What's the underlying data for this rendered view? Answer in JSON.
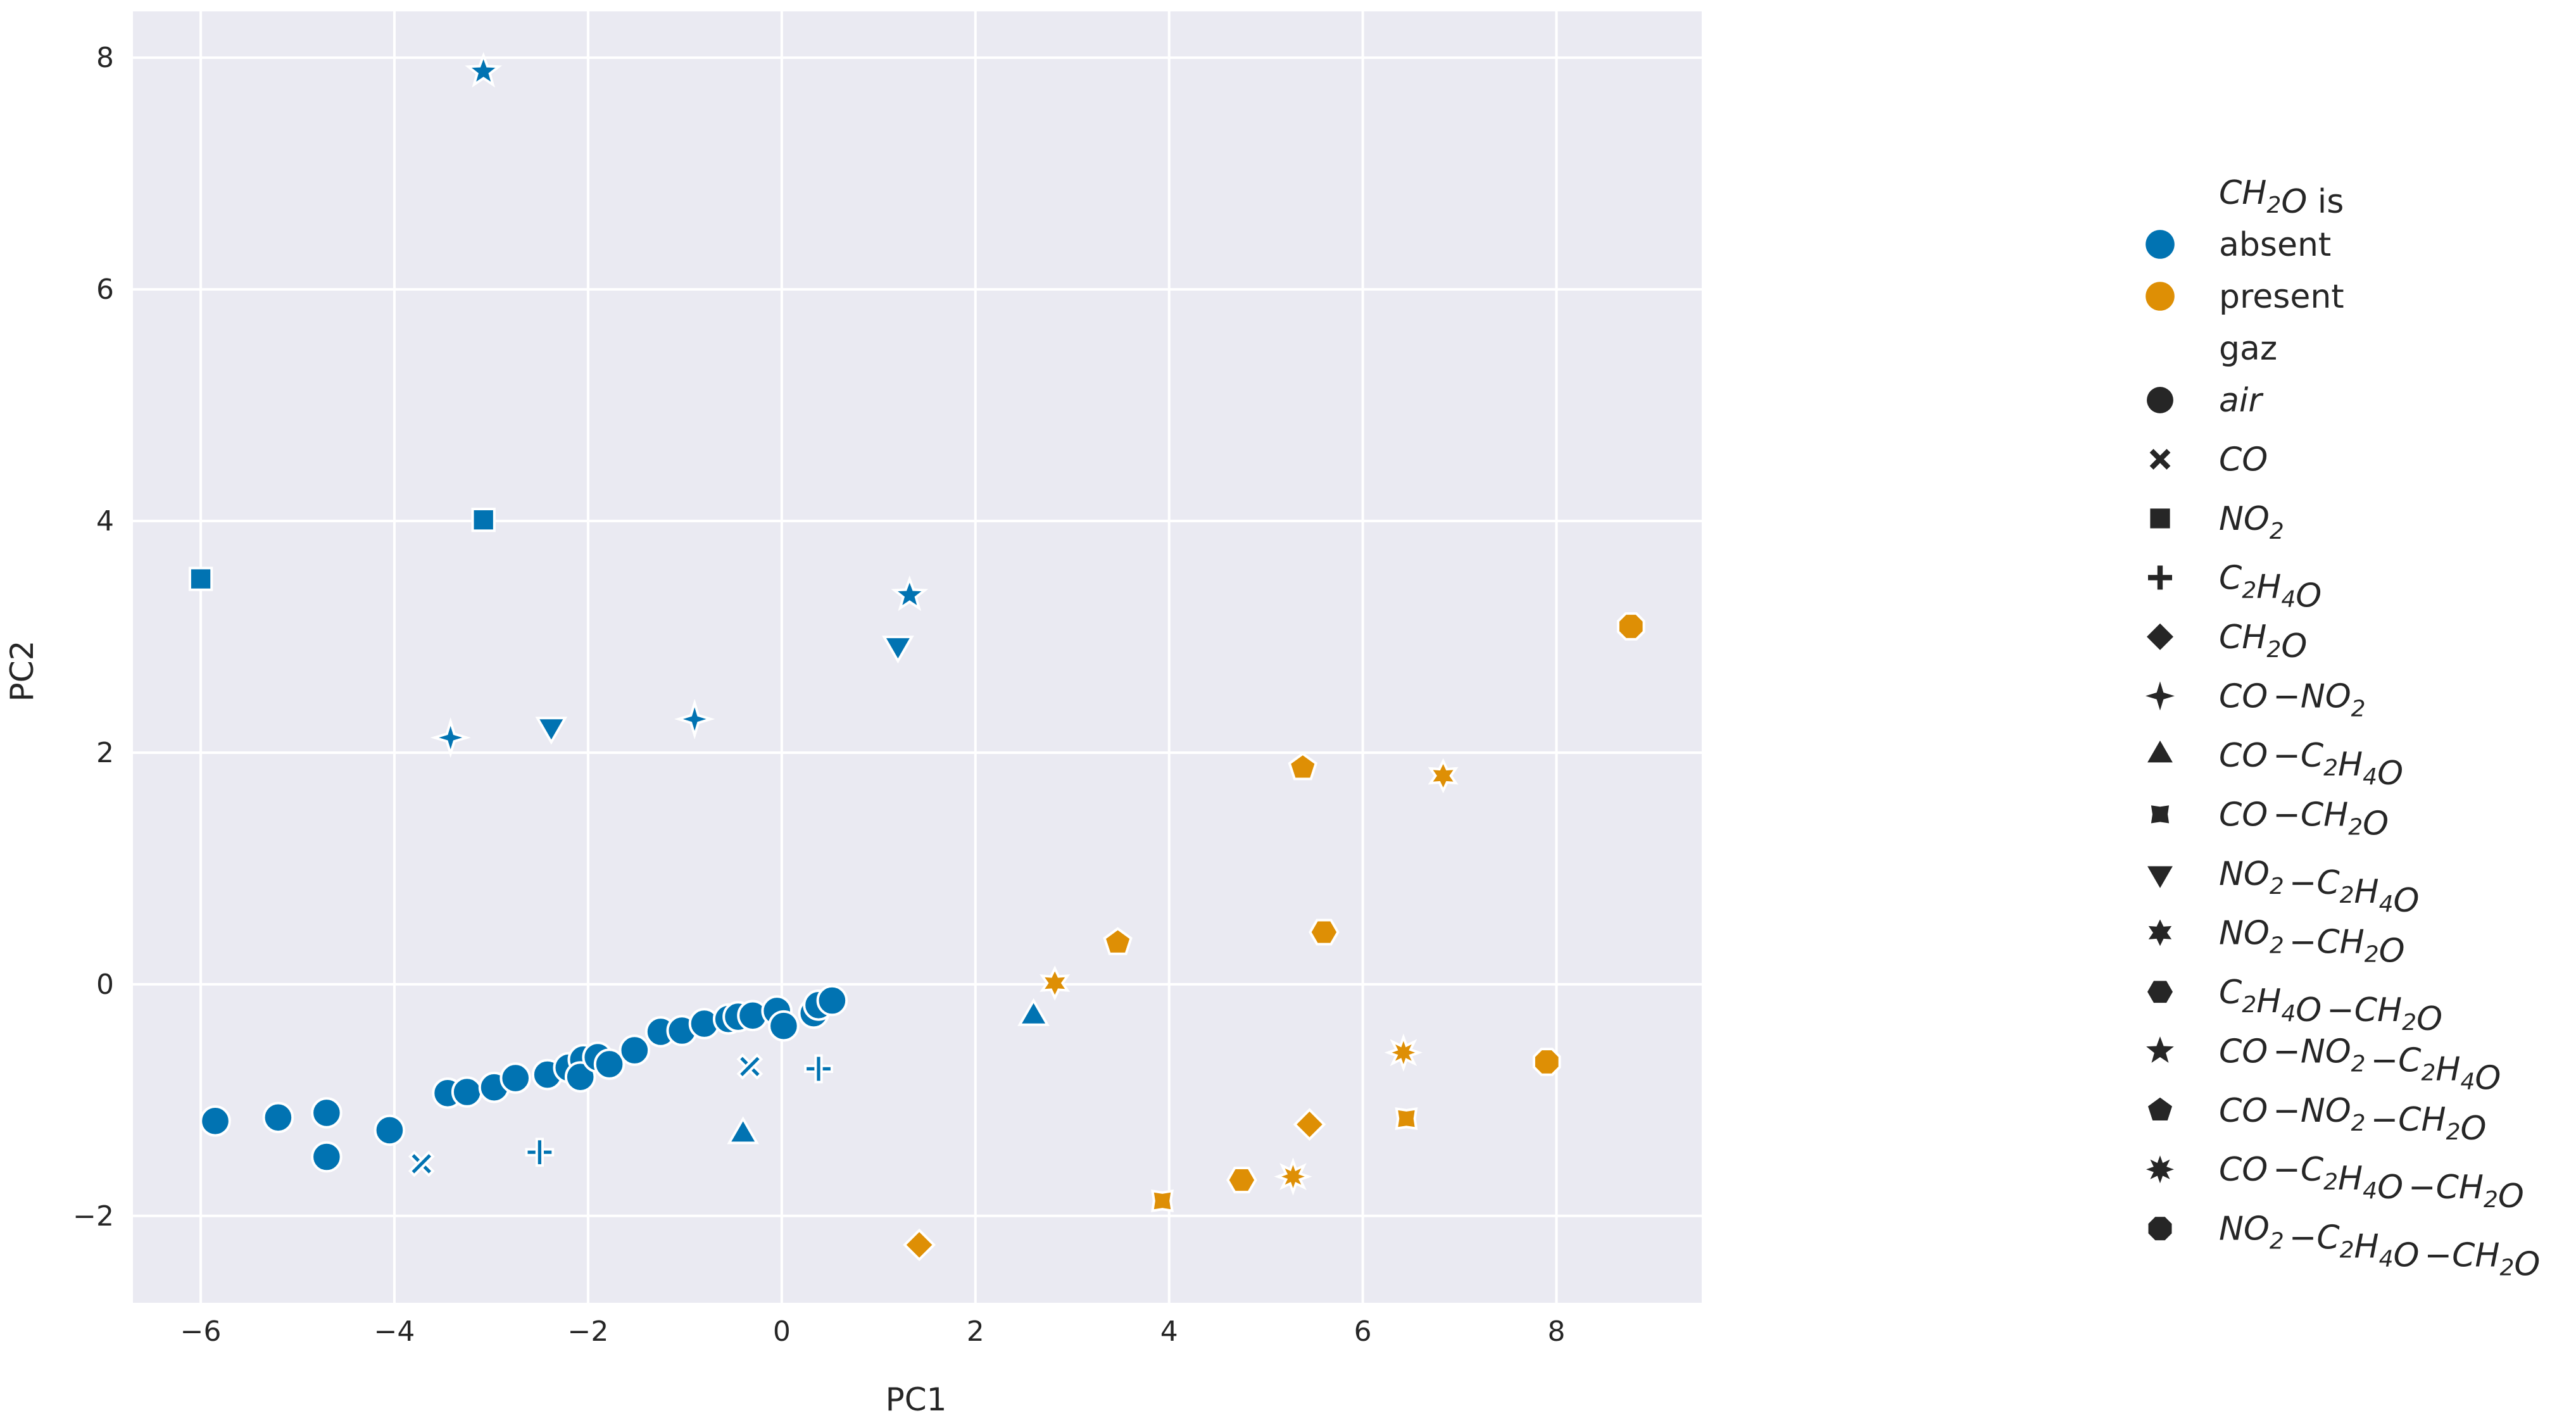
{
  "chart_data": {
    "type": "scatter",
    "xlabel": "PC1",
    "ylabel": "PC2",
    "xlim": [
      -6.7,
      9.5
    ],
    "ylim": [
      -2.75,
      8.4
    ],
    "xticks": [
      -6,
      -4,
      -2,
      0,
      2,
      4,
      6,
      8
    ],
    "yticks": [
      -2,
      0,
      2,
      4,
      6,
      8
    ],
    "xtick_labels": [
      "−6",
      "−4",
      "−2",
      "0",
      "2",
      "4",
      "6",
      "8"
    ],
    "ytick_labels": [
      "−2",
      "0",
      "2",
      "4",
      "6",
      "8"
    ],
    "grid": true,
    "background": "#eaeaf2",
    "legend_position": "right",
    "hue_title": "CH2O is",
    "hue_levels": [
      {
        "label": "absent",
        "color": "#0173b2"
      },
      {
        "label": "present",
        "color": "#de8f05"
      }
    ],
    "style_title": "gaz",
    "style_levels": [
      {
        "label": "air",
        "marker": "circle"
      },
      {
        "label": "CO",
        "marker": "x"
      },
      {
        "label": "NO2",
        "marker": "square"
      },
      {
        "label": "C2H4O",
        "marker": "plus"
      },
      {
        "label": "CH2O",
        "marker": "diamond"
      },
      {
        "label": "CO−NO2",
        "marker": "star4"
      },
      {
        "label": "CO−C2H4O",
        "marker": "triangle-up"
      },
      {
        "label": "CO−CH2O",
        "marker": "x-filled"
      },
      {
        "label": "NO2−C2H4O",
        "marker": "triangle-down"
      },
      {
        "label": "NO2−CH2O",
        "marker": "star6"
      },
      {
        "label": "C2H4O−CH2O",
        "marker": "hexagon"
      },
      {
        "label": "CO−NO2−C2H4O",
        "marker": "star5"
      },
      {
        "label": "CO−NO2−CH2O",
        "marker": "pentagon"
      },
      {
        "label": "CO−C2H4O−CH2O",
        "marker": "star8"
      },
      {
        "label": "NO2−C2H4O−CH2O",
        "marker": "octagon"
      }
    ],
    "points": [
      {
        "x": -5.85,
        "y": -1.18,
        "hue": "absent",
        "gaz": "air"
      },
      {
        "x": -5.2,
        "y": -1.15,
        "hue": "absent",
        "gaz": "air"
      },
      {
        "x": -4.7,
        "y": -1.11,
        "hue": "absent",
        "gaz": "air"
      },
      {
        "x": -4.7,
        "y": -1.49,
        "hue": "absent",
        "gaz": "air"
      },
      {
        "x": -4.05,
        "y": -1.26,
        "hue": "absent",
        "gaz": "air"
      },
      {
        "x": -3.45,
        "y": -0.94,
        "hue": "absent",
        "gaz": "air"
      },
      {
        "x": -3.25,
        "y": -0.93,
        "hue": "absent",
        "gaz": "air"
      },
      {
        "x": -2.97,
        "y": -0.89,
        "hue": "absent",
        "gaz": "air"
      },
      {
        "x": -2.75,
        "y": -0.81,
        "hue": "absent",
        "gaz": "air"
      },
      {
        "x": -2.42,
        "y": -0.78,
        "hue": "absent",
        "gaz": "air"
      },
      {
        "x": -2.2,
        "y": -0.72,
        "hue": "absent",
        "gaz": "air"
      },
      {
        "x": -2.05,
        "y": -0.65,
        "hue": "absent",
        "gaz": "air"
      },
      {
        "x": -2.08,
        "y": -0.8,
        "hue": "absent",
        "gaz": "air"
      },
      {
        "x": -1.9,
        "y": -0.63,
        "hue": "absent",
        "gaz": "air"
      },
      {
        "x": -1.78,
        "y": -0.69,
        "hue": "absent",
        "gaz": "air"
      },
      {
        "x": -1.52,
        "y": -0.57,
        "hue": "absent",
        "gaz": "air"
      },
      {
        "x": -1.25,
        "y": -0.41,
        "hue": "absent",
        "gaz": "air"
      },
      {
        "x": -1.03,
        "y": -0.4,
        "hue": "absent",
        "gaz": "air"
      },
      {
        "x": -0.8,
        "y": -0.34,
        "hue": "absent",
        "gaz": "air"
      },
      {
        "x": -0.55,
        "y": -0.3,
        "hue": "absent",
        "gaz": "air"
      },
      {
        "x": -0.45,
        "y": -0.28,
        "hue": "absent",
        "gaz": "air"
      },
      {
        "x": -0.3,
        "y": -0.27,
        "hue": "absent",
        "gaz": "air"
      },
      {
        "x": -0.05,
        "y": -0.23,
        "hue": "absent",
        "gaz": "air"
      },
      {
        "x": 0.02,
        "y": -0.36,
        "hue": "absent",
        "gaz": "air"
      },
      {
        "x": 0.33,
        "y": -0.25,
        "hue": "absent",
        "gaz": "air"
      },
      {
        "x": 0.38,
        "y": -0.18,
        "hue": "absent",
        "gaz": "air"
      },
      {
        "x": 0.52,
        "y": -0.14,
        "hue": "absent",
        "gaz": "air"
      },
      {
        "x": -3.72,
        "y": -1.55,
        "hue": "absent",
        "gaz": "CO"
      },
      {
        "x": -0.33,
        "y": -0.71,
        "hue": "absent",
        "gaz": "CO"
      },
      {
        "x": -6.0,
        "y": 3.5,
        "hue": "absent",
        "gaz": "NO2"
      },
      {
        "x": -3.08,
        "y": 4.01,
        "hue": "absent",
        "gaz": "NO2"
      },
      {
        "x": -2.5,
        "y": -1.45,
        "hue": "absent",
        "gaz": "C2H4O"
      },
      {
        "x": 0.38,
        "y": -0.73,
        "hue": "absent",
        "gaz": "C2H4O"
      },
      {
        "x": -3.42,
        "y": 2.13,
        "hue": "absent",
        "gaz": "CO−NO2"
      },
      {
        "x": -0.9,
        "y": 2.29,
        "hue": "absent",
        "gaz": "CO−NO2"
      },
      {
        "x": -0.4,
        "y": -1.3,
        "hue": "absent",
        "gaz": "CO−C2H4O"
      },
      {
        "x": 2.6,
        "y": -0.28,
        "hue": "absent",
        "gaz": "CO−C2H4O"
      },
      {
        "x": -2.38,
        "y": 2.23,
        "hue": "absent",
        "gaz": "NO2−C2H4O"
      },
      {
        "x": 1.2,
        "y": 2.93,
        "hue": "absent",
        "gaz": "NO2−C2H4O"
      },
      {
        "x": -3.08,
        "y": 7.88,
        "hue": "absent",
        "gaz": "CO−NO2−C2H4O"
      },
      {
        "x": 1.32,
        "y": 3.36,
        "hue": "absent",
        "gaz": "CO−NO2−C2H4O"
      },
      {
        "x": 1.42,
        "y": -2.25,
        "hue": "present",
        "gaz": "CH2O"
      },
      {
        "x": 5.45,
        "y": -1.21,
        "hue": "present",
        "gaz": "CH2O"
      },
      {
        "x": 3.93,
        "y": -1.87,
        "hue": "present",
        "gaz": "CO−CH2O"
      },
      {
        "x": 6.45,
        "y": -1.16,
        "hue": "present",
        "gaz": "CO−CH2O"
      },
      {
        "x": 2.82,
        "y": 0.01,
        "hue": "present",
        "gaz": "NO2−CH2O"
      },
      {
        "x": 6.83,
        "y": 1.8,
        "hue": "present",
        "gaz": "NO2−CH2O"
      },
      {
        "x": 4.75,
        "y": -1.69,
        "hue": "present",
        "gaz": "C2H4O−CH2O"
      },
      {
        "x": 5.6,
        "y": 0.45,
        "hue": "present",
        "gaz": "C2H4O−CH2O"
      },
      {
        "x": 3.47,
        "y": 0.36,
        "hue": "present",
        "gaz": "CO−NO2−CH2O"
      },
      {
        "x": 5.38,
        "y": 1.87,
        "hue": "present",
        "gaz": "CO−NO2−CH2O"
      },
      {
        "x": 5.28,
        "y": -1.66,
        "hue": "present",
        "gaz": "CO−C2H4O−CH2O"
      },
      {
        "x": 6.42,
        "y": -0.59,
        "hue": "present",
        "gaz": "CO−C2H4O−CH2O"
      },
      {
        "x": 7.9,
        "y": -0.67,
        "hue": "present",
        "gaz": "NO2−C2H4O−CH2O"
      },
      {
        "x": 8.77,
        "y": 3.09,
        "hue": "present",
        "gaz": "NO2−C2H4O−CH2O"
      }
    ]
  }
}
